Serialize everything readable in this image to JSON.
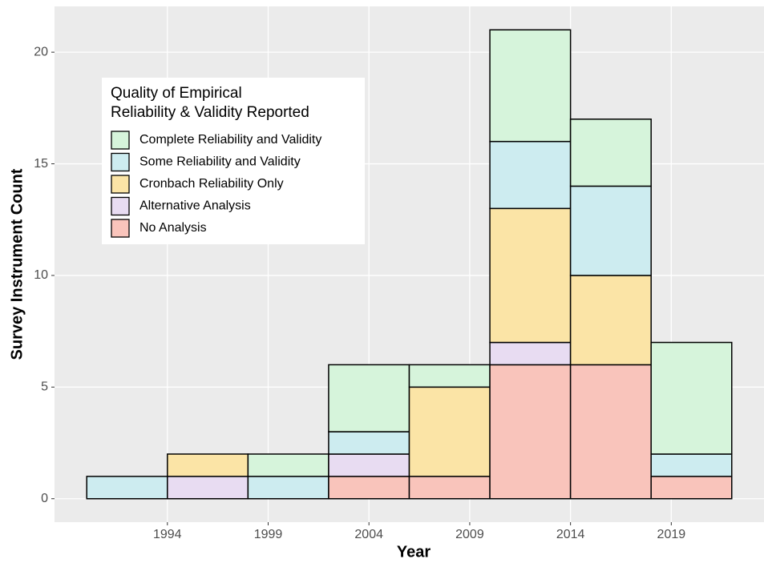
{
  "chart_data": {
    "type": "histogram",
    "x_label": "Year",
    "y_label": "Survey Instrument Count",
    "legend_title": [
      "Quality of Empirical",
      "Reliability & Validity Reported"
    ],
    "legend_position": "top-left",
    "bins": [
      1990,
      1994,
      1998,
      2002,
      2006,
      2010,
      2014,
      2018,
      2022
    ],
    "series": [
      {
        "name": "Complete Reliability and Validity",
        "color": "#d6f4db",
        "values": [
          0,
          0,
          1,
          3,
          1,
          5,
          3,
          5
        ]
      },
      {
        "name": "Some Reliability and Validity",
        "color": "#cdecf0",
        "values": [
          1,
          0,
          1,
          1,
          0,
          3,
          4,
          1
        ]
      },
      {
        "name": "Cronbach Reliability Only",
        "color": "#fbe4a6",
        "values": [
          0,
          1,
          0,
          0,
          4,
          6,
          4,
          0
        ]
      },
      {
        "name": "Alternative Analysis",
        "color": "#e8dcf2",
        "values": [
          0,
          1,
          0,
          1,
          0,
          1,
          0,
          0
        ]
      },
      {
        "name": "No Analysis",
        "color": "#f9c4bb",
        "values": [
          0,
          0,
          0,
          1,
          1,
          6,
          6,
          1
        ]
      }
    ],
    "xlim": [
      1988.4,
      2023.6
    ],
    "xticks": [
      1994,
      1999,
      2004,
      2009,
      2014,
      2019
    ],
    "ylim": [
      -1.05,
      22.05
    ],
    "yticks": [
      0,
      5,
      10,
      15,
      20
    ],
    "grid": true
  }
}
